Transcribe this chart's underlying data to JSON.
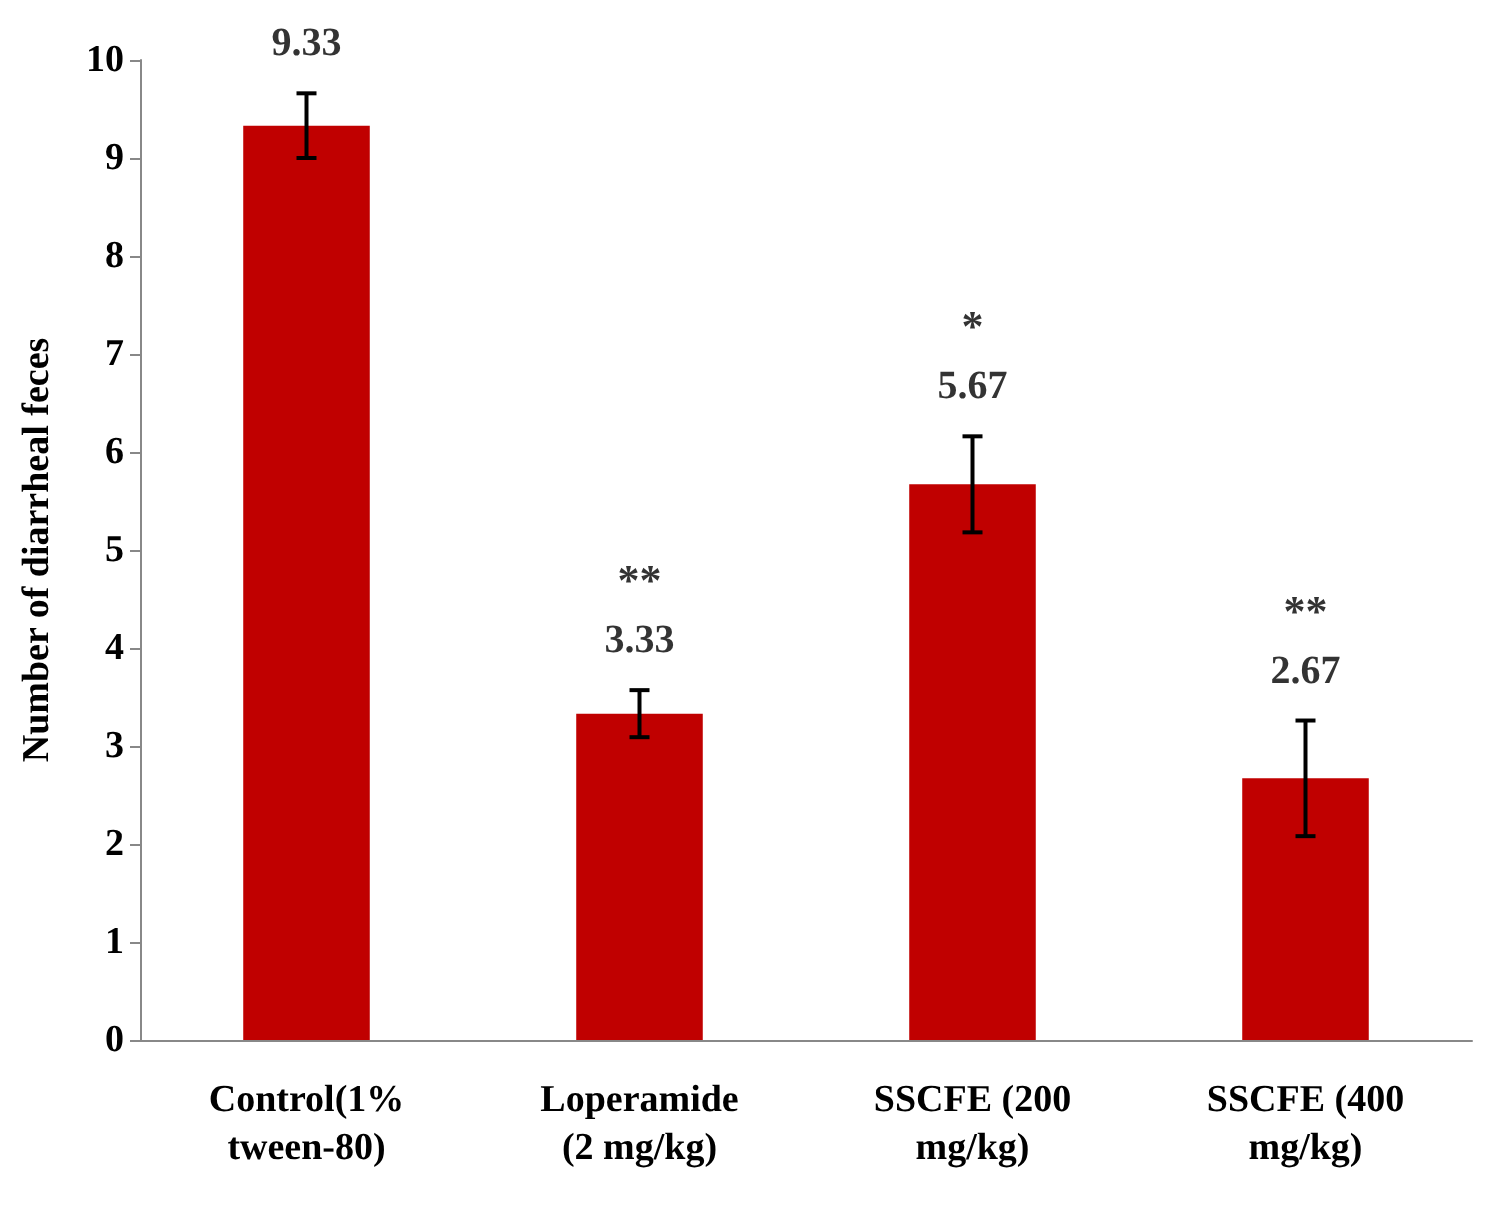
{
  "chart_data": {
    "type": "bar",
    "ylabel": "Number of diarrheal feces",
    "categories": [
      "Control(1%\ntween-80)",
      "Loperamide\n(2 mg/kg)",
      "SSCFE (200\nmg/kg)",
      "SSCFE (400\nmg/kg)"
    ],
    "values": [
      9.33,
      3.33,
      5.67,
      2.67
    ],
    "color": "#c00000",
    "errors": [
      0.33,
      0.24,
      0.49,
      0.59
    ],
    "data_labels": true,
    "annotations": [
      "**",
      "*",
      "**"
    ],
    "ylim": [
      0,
      10
    ],
    "yticks": [
      0,
      1,
      2,
      3,
      4,
      5,
      6,
      7,
      8,
      9,
      10
    ],
    "grid": false
  }
}
